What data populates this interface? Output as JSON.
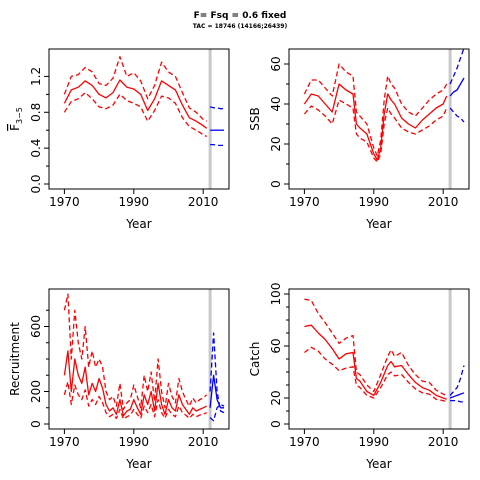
{
  "title": "F= Fsq = 0.6 fixed",
  "subtitle": "TAC = 18746 (14166;26439)",
  "colors": {
    "historical": "#ff0000",
    "projection": "#0000ff",
    "current_year_line": "#c8c8c8"
  },
  "chart_data": [
    {
      "type": "line",
      "title": "",
      "xlabel": "Year",
      "ylabel_main": "F",
      "ylabel_sub": "3−5",
      "ylabel_overbar": true,
      "xlim": [
        1967,
        2016
      ],
      "ylim": [
        0,
        1.45
      ],
      "xticks": [
        1970,
        1990,
        2010
      ],
      "yticks": [
        0.0,
        0.4,
        0.8,
        1.2
      ],
      "ytick_labels": [
        "0.0",
        "0.4",
        "0.8",
        "1.2"
      ],
      "yminor_ticks": [
        0.2,
        0.6,
        1.0
      ],
      "current_year": 2012,
      "series": [
        {
          "role": "historical",
          "linestyle": "solid",
          "x": [
            1970,
            1972,
            1974,
            1976,
            1978,
            1980,
            1982,
            1984,
            1986,
            1988,
            1990,
            1992,
            1994,
            1996,
            1998,
            2000,
            2002,
            2004,
            2006,
            2008,
            2010,
            2011
          ],
          "values": [
            0.9,
            1.05,
            1.08,
            1.15,
            1.1,
            1.0,
            0.96,
            1.02,
            1.16,
            1.08,
            1.06,
            1.0,
            0.82,
            0.95,
            1.15,
            1.1,
            1.05,
            0.88,
            0.74,
            0.7,
            0.65,
            0.62
          ]
        },
        {
          "role": "historical",
          "linestyle": "dashed",
          "x": [
            1970,
            1972,
            1974,
            1976,
            1978,
            1980,
            1982,
            1984,
            1986,
            1988,
            1990,
            1992,
            1994,
            1996,
            1998,
            2000,
            2002,
            2004,
            2006,
            2008,
            2010,
            2011
          ],
          "values": [
            1.0,
            1.2,
            1.22,
            1.3,
            1.25,
            1.12,
            1.1,
            1.18,
            1.42,
            1.2,
            1.24,
            1.15,
            0.95,
            1.1,
            1.36,
            1.25,
            1.2,
            1.02,
            0.85,
            0.8,
            0.72,
            0.7
          ]
        },
        {
          "role": "historical",
          "linestyle": "dashed",
          "x": [
            1970,
            1972,
            1974,
            1976,
            1978,
            1980,
            1982,
            1984,
            1986,
            1988,
            1990,
            1992,
            1994,
            1996,
            1998,
            2000,
            2002,
            2004,
            2006,
            2008,
            2010,
            2011
          ],
          "values": [
            0.8,
            0.92,
            0.95,
            1.02,
            0.95,
            0.86,
            0.84,
            0.88,
            1.0,
            0.93,
            0.9,
            0.86,
            0.7,
            0.82,
            0.98,
            0.96,
            0.9,
            0.74,
            0.64,
            0.6,
            0.55,
            0.53
          ]
        },
        {
          "role": "projection",
          "linestyle": "solid",
          "x": [
            2012,
            2013,
            2014,
            2015,
            2016
          ],
          "values": [
            0.6,
            0.6,
            0.6,
            0.6,
            0.6
          ]
        },
        {
          "role": "projection",
          "linestyle": "dashed",
          "x": [
            2012,
            2013,
            2014,
            2015,
            2016
          ],
          "values": [
            0.86,
            0.85,
            0.85,
            0.84,
            0.84
          ]
        },
        {
          "role": "projection",
          "linestyle": "dashed",
          "x": [
            2012,
            2013,
            2014,
            2015,
            2016
          ],
          "values": [
            0.44,
            0.44,
            0.43,
            0.43,
            0.43
          ]
        }
      ]
    },
    {
      "type": "line",
      "title": "",
      "xlabel": "Year",
      "ylabel": "SSB",
      "xlim": [
        1967,
        2016
      ],
      "ylim": [
        0,
        65
      ],
      "xticks": [
        1970,
        1990,
        2010
      ],
      "yticks": [
        0,
        20,
        40,
        60
      ],
      "ytick_labels": [
        "0",
        "20",
        "40",
        "60"
      ],
      "yminor_ticks": [
        10,
        30,
        50
      ],
      "current_year": 2012,
      "series": [
        {
          "role": "historical",
          "linestyle": "solid",
          "x": [
            1970,
            1972,
            1974,
            1976,
            1978,
            1980,
            1982,
            1984,
            1985,
            1986,
            1988,
            1990,
            1991,
            1992,
            1993,
            1994,
            1995,
            1996,
            1998,
            2000,
            2002,
            2004,
            2006,
            2008,
            2010,
            2011
          ],
          "values": [
            40,
            45,
            44,
            40,
            36,
            50,
            47,
            45,
            30,
            28,
            25,
            15,
            12,
            18,
            35,
            45,
            42,
            40,
            33,
            30,
            28,
            32,
            35,
            38,
            40,
            44
          ]
        },
        {
          "role": "historical",
          "linestyle": "dashed",
          "x": [
            1970,
            1972,
            1974,
            1976,
            1978,
            1980,
            1982,
            1984,
            1985,
            1986,
            1988,
            1990,
            1991,
            1992,
            1993,
            1994,
            1995,
            1996,
            1998,
            2000,
            2002,
            2004,
            2006,
            2008,
            2010,
            2011
          ],
          "values": [
            45,
            52,
            52,
            48,
            44,
            60,
            56,
            54,
            36,
            34,
            30,
            18,
            14,
            22,
            42,
            54,
            50,
            48,
            40,
            36,
            34,
            38,
            42,
            45,
            47,
            50
          ]
        },
        {
          "role": "historical",
          "linestyle": "dashed",
          "x": [
            1970,
            1972,
            1974,
            1976,
            1978,
            1980,
            1982,
            1984,
            1985,
            1986,
            1988,
            1990,
            1991,
            1992,
            1993,
            1994,
            1995,
            1996,
            1998,
            2000,
            2002,
            2004,
            2006,
            2008,
            2010,
            2011
          ],
          "values": [
            35,
            39,
            37,
            34,
            30,
            42,
            40,
            38,
            25,
            23,
            21,
            13,
            11,
            15,
            30,
            38,
            35,
            33,
            28,
            26,
            25,
            27,
            29,
            32,
            34,
            38
          ]
        },
        {
          "role": "projection",
          "linestyle": "solid",
          "x": [
            2012,
            2013,
            2014,
            2015,
            2016
          ],
          "values": [
            44,
            46,
            47,
            50,
            53
          ]
        },
        {
          "role": "projection",
          "linestyle": "dashed",
          "x": [
            2012,
            2013,
            2014,
            2015,
            2016
          ],
          "values": [
            50,
            54,
            58,
            63,
            68
          ]
        },
        {
          "role": "projection",
          "linestyle": "dashed",
          "x": [
            2012,
            2013,
            2014,
            2015,
            2016
          ],
          "values": [
            38,
            36,
            34,
            33,
            31
          ]
        }
      ]
    },
    {
      "type": "line",
      "title": "",
      "xlabel": "Year",
      "ylabel": "Recruitment",
      "xlim": [
        1967,
        2016
      ],
      "ylim": [
        0,
        800
      ],
      "xticks": [
        1970,
        1990,
        2010
      ],
      "yticks": [
        0,
        200,
        600
      ],
      "ytick_labels": [
        "0",
        "200",
        "600"
      ],
      "yminor_ticks": [
        100,
        300,
        400,
        500,
        700
      ],
      "current_year": 2012,
      "series": [
        {
          "role": "historical",
          "linestyle": "solid",
          "x": [
            1970,
            1971,
            1972,
            1973,
            1974,
            1975,
            1976,
            1977,
            1978,
            1979,
            1980,
            1981,
            1982,
            1983,
            1984,
            1985,
            1986,
            1987,
            1988,
            1989,
            1990,
            1991,
            1992,
            1993,
            1994,
            1995,
            1996,
            1997,
            1998,
            1999,
            2000,
            2001,
            2002,
            2003,
            2004,
            2005,
            2006,
            2007,
            2008,
            2009,
            2010,
            2011
          ],
          "values": [
            300,
            450,
            200,
            400,
            300,
            250,
            350,
            180,
            250,
            200,
            280,
            220,
            120,
            80,
            100,
            60,
            150,
            50,
            80,
            90,
            150,
            100,
            60,
            180,
            120,
            200,
            80,
            250,
            120,
            60,
            150,
            100,
            80,
            180,
            120,
            90,
            60,
            100,
            80,
            90,
            100,
            110
          ]
        },
        {
          "role": "historical",
          "linestyle": "dashed",
          "x": [
            1970,
            1971,
            1972,
            1973,
            1974,
            1975,
            1976,
            1977,
            1978,
            1979,
            1980,
            1981,
            1982,
            1983,
            1984,
            1985,
            1986,
            1987,
            1988,
            1989,
            1990,
            1991,
            1992,
            1993,
            1994,
            1995,
            1996,
            1997,
            1998,
            1999,
            2000,
            2001,
            2002,
            2003,
            2004,
            2005,
            2006,
            2007,
            2008,
            2009,
            2010,
            2011
          ],
          "values": [
            700,
            800,
            400,
            700,
            500,
            400,
            600,
            350,
            450,
            350,
            400,
            350,
            200,
            150,
            170,
            110,
            250,
            90,
            130,
            150,
            240,
            170,
            100,
            300,
            200,
            320,
            140,
            400,
            200,
            100,
            250,
            170,
            130,
            280,
            200,
            150,
            110,
            160,
            130,
            150,
            160,
            180
          ]
        },
        {
          "role": "historical",
          "linestyle": "dashed",
          "x": [
            1970,
            1971,
            1972,
            1973,
            1974,
            1975,
            1976,
            1977,
            1978,
            1979,
            1980,
            1981,
            1982,
            1983,
            1984,
            1985,
            1986,
            1987,
            1988,
            1989,
            1990,
            1991,
            1992,
            1993,
            1994,
            1995,
            1996,
            1997,
            1998,
            1999,
            2000,
            2001,
            2002,
            2003,
            2004,
            2005,
            2006,
            2007,
            2008,
            2009,
            2010,
            2011
          ],
          "values": [
            180,
            260,
            120,
            240,
            180,
            150,
            210,
            110,
            150,
            120,
            170,
            130,
            70,
            45,
            60,
            35,
            90,
            30,
            45,
            55,
            90,
            60,
            35,
            110,
            70,
            120,
            45,
            150,
            70,
            35,
            90,
            60,
            45,
            110,
            70,
            55,
            35,
            60,
            45,
            55,
            60,
            70
          ]
        },
        {
          "role": "projection",
          "linestyle": "solid",
          "x": [
            2012,
            2013,
            2014,
            2015,
            2016
          ],
          "values": [
            100,
            300,
            150,
            100,
            100
          ]
        },
        {
          "role": "projection",
          "linestyle": "dashed",
          "x": [
            2012,
            2013,
            2014,
            2015,
            2016
          ],
          "values": [
            200,
            560,
            200,
            80,
            70
          ]
        },
        {
          "role": "projection",
          "linestyle": "dashed",
          "x": [
            2012,
            2013,
            2014,
            2015,
            2016
          ],
          "values": [
            40,
            20,
            100,
            120,
            110
          ]
        }
      ]
    },
    {
      "type": "line",
      "title": "",
      "xlabel": "Year",
      "ylabel": "Catch",
      "xlim": [
        1967,
        2016
      ],
      "ylim": [
        0,
        100
      ],
      "xticks": [
        1970,
        1990,
        2010
      ],
      "yticks": [
        0,
        20,
        60,
        100
      ],
      "ytick_labels": [
        "0",
        "20",
        "60",
        "100"
      ],
      "yminor_ticks": [
        10,
        30,
        40,
        50,
        70,
        80,
        90
      ],
      "current_year": 2012,
      "series": [
        {
          "role": "historical",
          "linestyle": "solid",
          "x": [
            1970,
            1972,
            1974,
            1976,
            1978,
            1980,
            1982,
            1984,
            1985,
            1986,
            1988,
            1990,
            1992,
            1994,
            1995,
            1996,
            1998,
            2000,
            2002,
            2004,
            2006,
            2008,
            2010,
            2011
          ],
          "values": [
            75,
            76,
            70,
            65,
            58,
            50,
            54,
            55,
            35,
            33,
            25,
            22,
            32,
            45,
            48,
            44,
            45,
            38,
            32,
            28,
            26,
            22,
            20,
            19
          ]
        },
        {
          "role": "historical",
          "linestyle": "dashed",
          "x": [
            1970,
            1972,
            1974,
            1976,
            1978,
            1980,
            1982,
            1984,
            1985,
            1986,
            1988,
            1990,
            1992,
            1994,
            1995,
            1996,
            1998,
            2000,
            2002,
            2004,
            2006,
            2008,
            2010,
            2011
          ],
          "values": [
            96,
            95,
            85,
            78,
            70,
            62,
            66,
            68,
            40,
            38,
            30,
            25,
            38,
            52,
            57,
            52,
            55,
            45,
            38,
            33,
            32,
            26,
            23,
            22
          ]
        },
        {
          "role": "historical",
          "linestyle": "dashed",
          "x": [
            1970,
            1972,
            1974,
            1976,
            1978,
            1980,
            1982,
            1984,
            1985,
            1986,
            1988,
            1990,
            1992,
            1994,
            1995,
            1996,
            1998,
            2000,
            2002,
            2004,
            2006,
            2008,
            2010,
            2011
          ],
          "values": [
            55,
            59,
            56,
            50,
            46,
            41,
            43,
            44,
            30,
            28,
            22,
            20,
            28,
            38,
            40,
            37,
            38,
            32,
            27,
            24,
            23,
            19,
            18,
            17
          ]
        },
        {
          "role": "projection",
          "linestyle": "solid",
          "x": [
            2012,
            2013,
            2014,
            2015,
            2016
          ],
          "values": [
            20,
            21,
            22,
            23,
            24
          ]
        },
        {
          "role": "projection",
          "linestyle": "dashed",
          "x": [
            2012,
            2013,
            2014,
            2015,
            2016
          ],
          "values": [
            22,
            25,
            28,
            35,
            45
          ]
        },
        {
          "role": "projection",
          "linestyle": "dashed",
          "x": [
            2012,
            2013,
            2014,
            2015,
            2016
          ],
          "values": [
            18,
            18,
            18,
            17,
            17
          ]
        }
      ]
    }
  ]
}
